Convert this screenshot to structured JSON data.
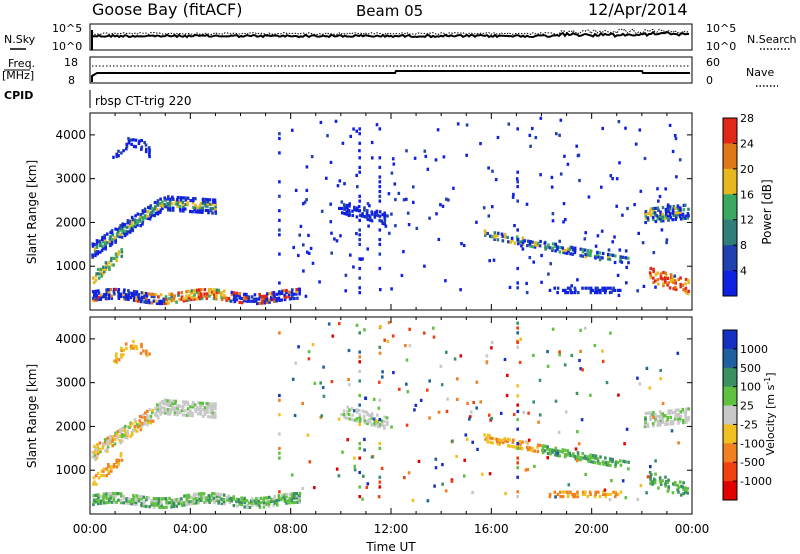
{
  "header": {
    "station": "Goose Bay (fitACF)",
    "beam": "Beam 05",
    "date": "12/Apr/2014"
  },
  "chart_data": [
    {
      "type": "line",
      "name": "noise-panel",
      "left_label": "N.Sky",
      "right_label": "N.Search",
      "left_ticks": [
        "10^5",
        "10^0"
      ],
      "right_ticks": [
        "10^5",
        "10^0"
      ],
      "x_range_hours": [
        0,
        24
      ]
    },
    {
      "type": "line",
      "name": "freq-panel",
      "left_label_1": "Freq.",
      "left_label_2": "[MHz]",
      "right_label": "Nave",
      "left_ticks": [
        "18",
        "8"
      ],
      "right_ticks": [
        "60",
        "0"
      ],
      "cpid_label": "CPID",
      "cpid_name": "rbsp CT-trig 220",
      "x_range_hours": [
        0,
        24
      ]
    },
    {
      "type": "heatmap",
      "name": "power-panel",
      "ylabel": "Slant Range [km]",
      "yticks": [
        "1000",
        "2000",
        "3000",
        "4000"
      ],
      "colorbar_label": "Power [dB]",
      "colorbar_ticks": [
        "4",
        "8",
        "12",
        "16",
        "20",
        "24",
        "28"
      ],
      "colors": [
        "#1020e0",
        "#2040b0",
        "#2f7f78",
        "#3aa860",
        "#e6b820",
        "#e07818",
        "#e02818"
      ]
    },
    {
      "type": "heatmap",
      "name": "velocity-panel",
      "ylabel": "Slant Range [km]",
      "yticks": [
        "1000",
        "2000",
        "3000",
        "4000"
      ],
      "colorbar_label": "Velocity [m s",
      "colorbar_label_sup": "-1",
      "colorbar_label_end": "]",
      "colorbar_ticks": [
        "1000",
        "500",
        "100",
        "25",
        "-25",
        "-100",
        "-500",
        "-1000"
      ],
      "colors": [
        "#1530c0",
        "#2060a0",
        "#3a9060",
        "#60c040",
        "#c8c8c8",
        "#f0c020",
        "#f08020",
        "#f04010",
        "#e00000"
      ]
    }
  ],
  "xaxis": {
    "ticks": [
      "00:00",
      "04:00",
      "08:00",
      "12:00",
      "16:00",
      "20:00",
      "00:00"
    ],
    "label": "Time UT"
  }
}
